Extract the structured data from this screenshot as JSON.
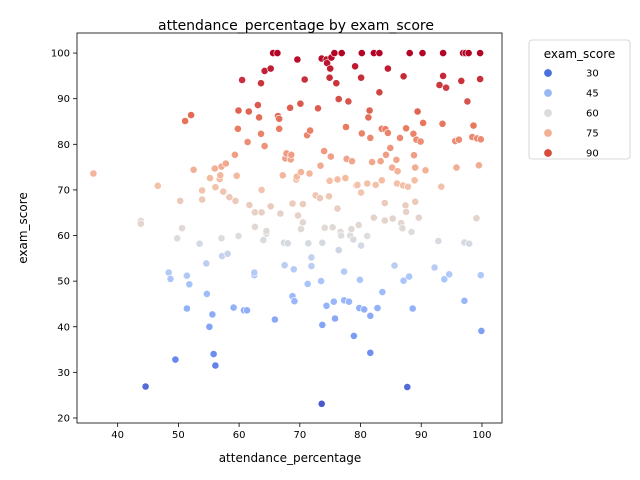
{
  "chart_data": {
    "type": "scatter",
    "title": "attendance_percentage by exam_score",
    "xlabel": "attendance_percentage",
    "ylabel": "exam_score",
    "xlim": [
      33.3,
      103.3
    ],
    "ylim": [
      18.9,
      104.4
    ],
    "xticks": [
      40,
      50,
      60,
      70,
      80,
      90,
      100
    ],
    "yticks": [
      20,
      30,
      40,
      50,
      60,
      70,
      80,
      90,
      100
    ],
    "grid": false,
    "hue": "exam_score",
    "legend": {
      "title": "exam_score",
      "placement": "outside-top-right",
      "entries": [
        {
          "label": "30",
          "color": "#4a6fe0"
        },
        {
          "label": "45",
          "color": "#99b8f2"
        },
        {
          "label": "60",
          "color": "#dcdcdc"
        },
        {
          "label": "75",
          "color": "#f3b193"
        },
        {
          "label": "90",
          "color": "#d64c3c"
        }
      ]
    },
    "color_scale": [
      {
        "v": 20,
        "color": "#3b4cc0"
      },
      {
        "v": 35,
        "color": "#6f92f3"
      },
      {
        "v": 50,
        "color": "#a9c5fc"
      },
      {
        "v": 60,
        "color": "#dddddd"
      },
      {
        "v": 72,
        "color": "#f5bea5"
      },
      {
        "v": 85,
        "color": "#e7745b"
      },
      {
        "v": 100,
        "color": "#b40426"
      }
    ],
    "points": [
      [
        36.0,
        73.6
      ],
      [
        43.8,
        63.2
      ],
      [
        43.8,
        62.6
      ],
      [
        44.6,
        26.9
      ],
      [
        46.6,
        70.9
      ],
      [
        48.4,
        51.9
      ],
      [
        48.7,
        50.5
      ],
      [
        49.5,
        32.8
      ],
      [
        49.8,
        59.4
      ],
      [
        50.3,
        67.6
      ],
      [
        50.6,
        61.6
      ],
      [
        51.1,
        85.1
      ],
      [
        51.4,
        44.0
      ],
      [
        51.4,
        51.2
      ],
      [
        51.8,
        49.3
      ],
      [
        52.1,
        86.4
      ],
      [
        52.5,
        74.4
      ],
      [
        53.5,
        58.2
      ],
      [
        53.9,
        67.9
      ],
      [
        53.9,
        69.9
      ],
      [
        54.6,
        53.9
      ],
      [
        54.7,
        47.2
      ],
      [
        55.1,
        40.0
      ],
      [
        55.2,
        72.6
      ],
      [
        55.6,
        42.7
      ],
      [
        55.8,
        34.0
      ],
      [
        56.0,
        74.7
      ],
      [
        56.1,
        31.5
      ],
      [
        56.1,
        70.6
      ],
      [
        56.8,
        72.4
      ],
      [
        56.9,
        73.2
      ],
      [
        57.1,
        59.4
      ],
      [
        57.1,
        75.1
      ],
      [
        57.2,
        55.5
      ],
      [
        57.4,
        69.6
      ],
      [
        57.8,
        75.8
      ],
      [
        58.1,
        56.0
      ],
      [
        58.4,
        68.4
      ],
      [
        59.1,
        44.2
      ],
      [
        59.3,
        77.7
      ],
      [
        59.4,
        67.6
      ],
      [
        59.6,
        73.1
      ],
      [
        59.8,
        83.4
      ],
      [
        59.9,
        59.9
      ],
      [
        59.9,
        87.4
      ],
      [
        60.5,
        94.1
      ],
      [
        60.8,
        43.6
      ],
      [
        61.3,
        43.6
      ],
      [
        61.4,
        80.5
      ],
      [
        61.6,
        87.2
      ],
      [
        61.7,
        66.7
      ],
      [
        62.5,
        51.3
      ],
      [
        62.5,
        51.9
      ],
      [
        62.6,
        65.1
      ],
      [
        62.6,
        61.9
      ],
      [
        63.1,
        88.6
      ],
      [
        63.3,
        85.9
      ],
      [
        63.6,
        82.3
      ],
      [
        63.6,
        93.4
      ],
      [
        63.7,
        70.0
      ],
      [
        63.7,
        65.1
      ],
      [
        64.0,
        59.0
      ],
      [
        64.2,
        96.1
      ],
      [
        64.2,
        79.6
      ],
      [
        64.5,
        60.4
      ],
      [
        64.5,
        61.0
      ],
      [
        65.2,
        96.6
      ],
      [
        65.2,
        66.4
      ],
      [
        65.6,
        100.0
      ],
      [
        65.9,
        41.6
      ],
      [
        66.3,
        100.0
      ],
      [
        66.4,
        86.2
      ],
      [
        66.6,
        83.4
      ],
      [
        66.6,
        85.6
      ],
      [
        66.8,
        64.8
      ],
      [
        67.2,
        73.2
      ],
      [
        67.4,
        58.4
      ],
      [
        67.5,
        53.5
      ],
      [
        67.6,
        76.9
      ],
      [
        67.8,
        78.0
      ],
      [
        68.0,
        58.3
      ],
      [
        68.4,
        88.0
      ],
      [
        68.5,
        76.7
      ],
      [
        68.6,
        77.7
      ],
      [
        68.8,
        67.0
      ],
      [
        68.8,
        46.7
      ],
      [
        69.0,
        52.6
      ],
      [
        69.1,
        45.6
      ],
      [
        69.4,
        72.3
      ],
      [
        69.5,
        72.9
      ],
      [
        69.6,
        98.6
      ],
      [
        69.7,
        64.4
      ],
      [
        70.1,
        88.9
      ],
      [
        70.2,
        61.4
      ],
      [
        70.2,
        73.9
      ],
      [
        70.5,
        62.9
      ],
      [
        70.5,
        66.9
      ],
      [
        70.8,
        94.2
      ],
      [
        71.2,
        82.0
      ],
      [
        71.3,
        49.4
      ],
      [
        71.4,
        58.3
      ],
      [
        71.6,
        73.6
      ],
      [
        71.7,
        83.0
      ],
      [
        71.9,
        55.2
      ],
      [
        71.9,
        53.3
      ],
      [
        72.6,
        68.8
      ],
      [
        73.0,
        87.9
      ],
      [
        73.3,
        68.2
      ],
      [
        73.4,
        75.3
      ],
      [
        73.5,
        50.0
      ],
      [
        73.6,
        23.1
      ],
      [
        73.6,
        98.8
      ],
      [
        73.7,
        40.4
      ],
      [
        73.7,
        58.4
      ],
      [
        74.0,
        78.5
      ],
      [
        74.1,
        61.7
      ],
      [
        74.4,
        98.6
      ],
      [
        74.4,
        44.6
      ],
      [
        74.5,
        97.8
      ],
      [
        74.8,
        68.6
      ],
      [
        74.9,
        94.6
      ],
      [
        74.9,
        72.0
      ],
      [
        75.0,
        96.6
      ],
      [
        75.1,
        77.3
      ],
      [
        75.2,
        99.0
      ],
      [
        75.4,
        61.8
      ],
      [
        75.6,
        45.5
      ],
      [
        75.7,
        100.0
      ],
      [
        75.8,
        41.8
      ],
      [
        76.0,
        93.4
      ],
      [
        76.2,
        72.3
      ],
      [
        76.2,
        65.9
      ],
      [
        76.4,
        89.9
      ],
      [
        76.4,
        56.8
      ],
      [
        76.7,
        60.8
      ],
      [
        76.8,
        60.0
      ],
      [
        76.9,
        100.0
      ],
      [
        77.3,
        45.8
      ],
      [
        77.3,
        52.1
      ],
      [
        77.5,
        72.6
      ],
      [
        77.6,
        83.8
      ],
      [
        77.7,
        76.8
      ],
      [
        78.0,
        89.4
      ],
      [
        78.1,
        45.5
      ],
      [
        78.3,
        60.0
      ],
      [
        78.5,
        61.4
      ],
      [
        78.6,
        76.3
      ],
      [
        78.8,
        59.1
      ],
      [
        78.9,
        38.0
      ],
      [
        79.1,
        97.1
      ],
      [
        79.3,
        71.0
      ],
      [
        79.5,
        71.1
      ],
      [
        79.7,
        62.3
      ],
      [
        79.8,
        44.1
      ],
      [
        79.9,
        50.3
      ],
      [
        80.1,
        57.8
      ],
      [
        80.1,
        69.4
      ],
      [
        80.1,
        94.6
      ],
      [
        80.2,
        82.4
      ],
      [
        80.2,
        100.0
      ],
      [
        80.6,
        43.8
      ],
      [
        81.1,
        59.9
      ],
      [
        81.1,
        71.4
      ],
      [
        81.3,
        85.9
      ],
      [
        81.5,
        87.4
      ],
      [
        81.6,
        81.4
      ],
      [
        81.6,
        42.4
      ],
      [
        81.6,
        34.3
      ],
      [
        81.9,
        76.1
      ],
      [
        82.2,
        63.9
      ],
      [
        82.2,
        100.0
      ],
      [
        82.5,
        71.1
      ],
      [
        82.8,
        44.1
      ],
      [
        83.1,
        100.0
      ],
      [
        83.1,
        91.4
      ],
      [
        83.3,
        76.3
      ],
      [
        83.5,
        83.4
      ],
      [
        83.5,
        72.1
      ],
      [
        83.6,
        47.6
      ],
      [
        84.0,
        63.3
      ],
      [
        84.0,
        67.1
      ],
      [
        84.1,
        83.3
      ],
      [
        84.2,
        77.7
      ],
      [
        84.5,
        82.5
      ],
      [
        84.5,
        96.6
      ],
      [
        84.9,
        79.2
      ],
      [
        85.2,
        74.9
      ],
      [
        85.3,
        63.7
      ],
      [
        85.6,
        53.4
      ],
      [
        85.9,
        76.6
      ],
      [
        86.0,
        71.4
      ],
      [
        86.1,
        74.1
      ],
      [
        86.5,
        81.4
      ],
      [
        86.7,
        62.7
      ],
      [
        86.9,
        61.6
      ],
      [
        87.0,
        71.0
      ],
      [
        87.1,
        50.1
      ],
      [
        87.1,
        94.9
      ],
      [
        87.4,
        66.6
      ],
      [
        87.5,
        83.5
      ],
      [
        87.5,
        65.2
      ],
      [
        87.7,
        26.8
      ],
      [
        87.8,
        70.7
      ],
      [
        88.0,
        51.0
      ],
      [
        88.1,
        100.0
      ],
      [
        88.4,
        60.8
      ],
      [
        88.6,
        44.0
      ],
      [
        88.7,
        82.3
      ],
      [
        88.8,
        77.6
      ],
      [
        88.9,
        72.1
      ],
      [
        89.0,
        67.4
      ],
      [
        89.0,
        74.9
      ],
      [
        89.2,
        81.0
      ],
      [
        89.4,
        87.2
      ],
      [
        89.6,
        63.9
      ],
      [
        89.9,
        80.6
      ],
      [
        90.2,
        100.0
      ],
      [
        90.3,
        84.7
      ],
      [
        90.7,
        74.3
      ],
      [
        92.2,
        53.0
      ],
      [
        92.8,
        58.8
      ],
      [
        93.0,
        93.0
      ],
      [
        93.3,
        70.7
      ],
      [
        93.5,
        84.5
      ],
      [
        93.6,
        95.0
      ],
      [
        93.6,
        100.0
      ],
      [
        93.8,
        50.4
      ],
      [
        94.1,
        92.4
      ],
      [
        94.6,
        51.5
      ],
      [
        95.6,
        80.7
      ],
      [
        95.8,
        74.9
      ],
      [
        96.2,
        81.0
      ],
      [
        96.6,
        93.9
      ],
      [
        96.9,
        100.0
      ],
      [
        97.1,
        58.5
      ],
      [
        97.1,
        45.7
      ],
      [
        97.3,
        100.0
      ],
      [
        97.6,
        89.4
      ],
      [
        97.8,
        100.0
      ],
      [
        97.9,
        58.2
      ],
      [
        98.4,
        81.6
      ],
      [
        98.6,
        84.1
      ],
      [
        99.1,
        63.8
      ],
      [
        99.2,
        81.3
      ],
      [
        99.5,
        75.4
      ],
      [
        99.7,
        94.3
      ],
      [
        99.7,
        100.0
      ],
      [
        99.8,
        51.3
      ],
      [
        99.8,
        81.1
      ],
      [
        99.9,
        39.1
      ]
    ]
  }
}
